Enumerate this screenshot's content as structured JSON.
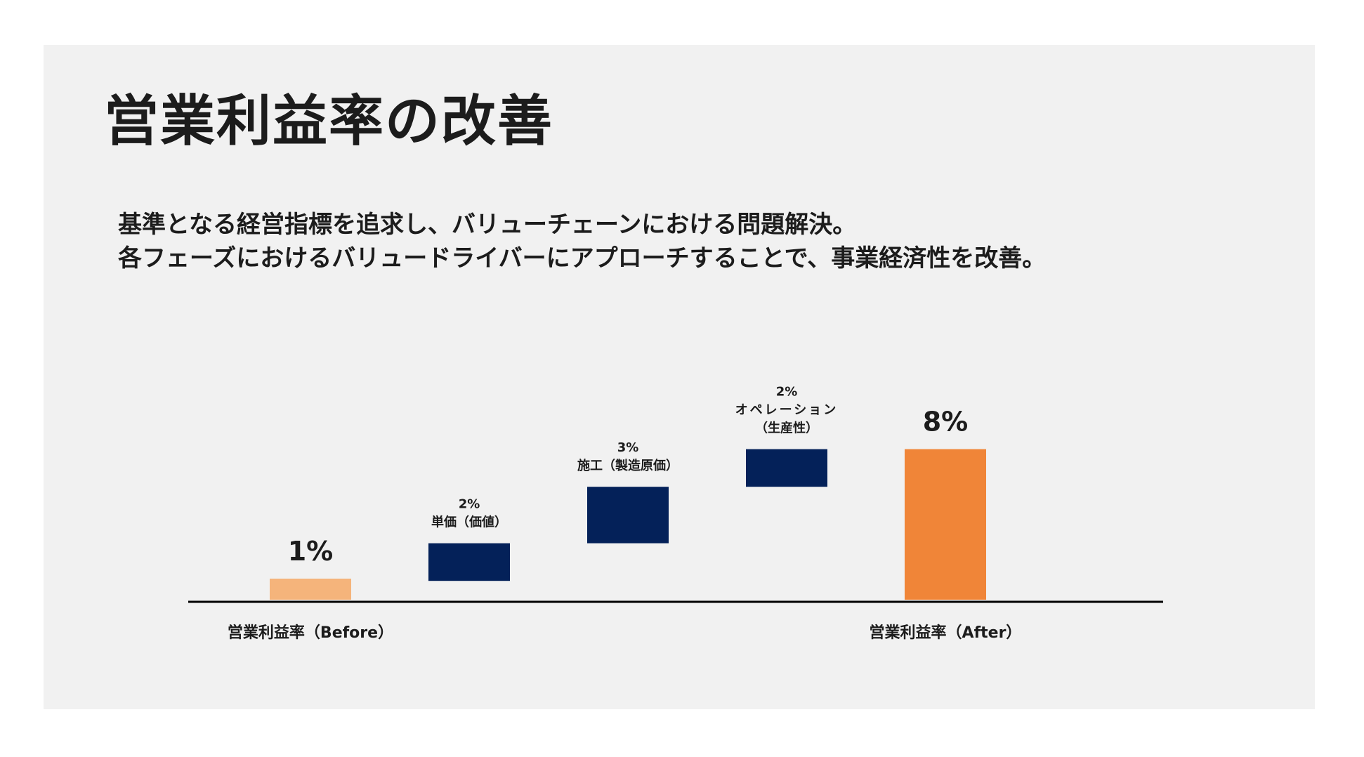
{
  "slide": {
    "title": "営業利益率の改善",
    "subtitle_lines": [
      "基準となる経営指標を追求し、バリューチェーンにおける問題解決。",
      "各フェーズにおけるバリュードライバーにアプローチすることで、事業経済性を改善。"
    ]
  },
  "chart_data": {
    "type": "bar",
    "subtype": "waterfall",
    "title": "",
    "xlabel": "",
    "ylabel": "",
    "unit": "%",
    "grid": false,
    "legend": "none",
    "categories": [
      "営業利益率（Before）",
      "単価（価値）",
      "施工（製造原価）",
      "オペレーション（生産性）",
      "営業利益率（After）"
    ],
    "bars": [
      {
        "category": "営業利益率（Before）",
        "kind": "total",
        "value": 1,
        "value_label": "1%",
        "label_lines": [],
        "axis_label": "営業利益率（Before）",
        "color": "#f5b47b"
      },
      {
        "category": "単価（価値）",
        "kind": "delta",
        "value": 2,
        "value_label": "2%",
        "label_lines": [
          "単価（価値）"
        ],
        "axis_label": "",
        "color": "#042159"
      },
      {
        "category": "施工（製造原価）",
        "kind": "delta",
        "value": 3,
        "value_label": "3%",
        "label_lines": [
          "施工（製造原価）"
        ],
        "axis_label": "",
        "color": "#042159"
      },
      {
        "category": "オペレーション（生産性）",
        "kind": "delta",
        "value": 2,
        "value_label": "2%",
        "label_lines": [
          "オペレーション",
          "（生産性）"
        ],
        "axis_label": "",
        "color": "#042159"
      },
      {
        "category": "営業利益率（After）",
        "kind": "total",
        "value": 8,
        "value_label": "8%",
        "label_lines": [],
        "axis_label": "営業利益率（After）",
        "color": "#f08538"
      }
    ],
    "ylim": [
      0,
      8
    ]
  }
}
